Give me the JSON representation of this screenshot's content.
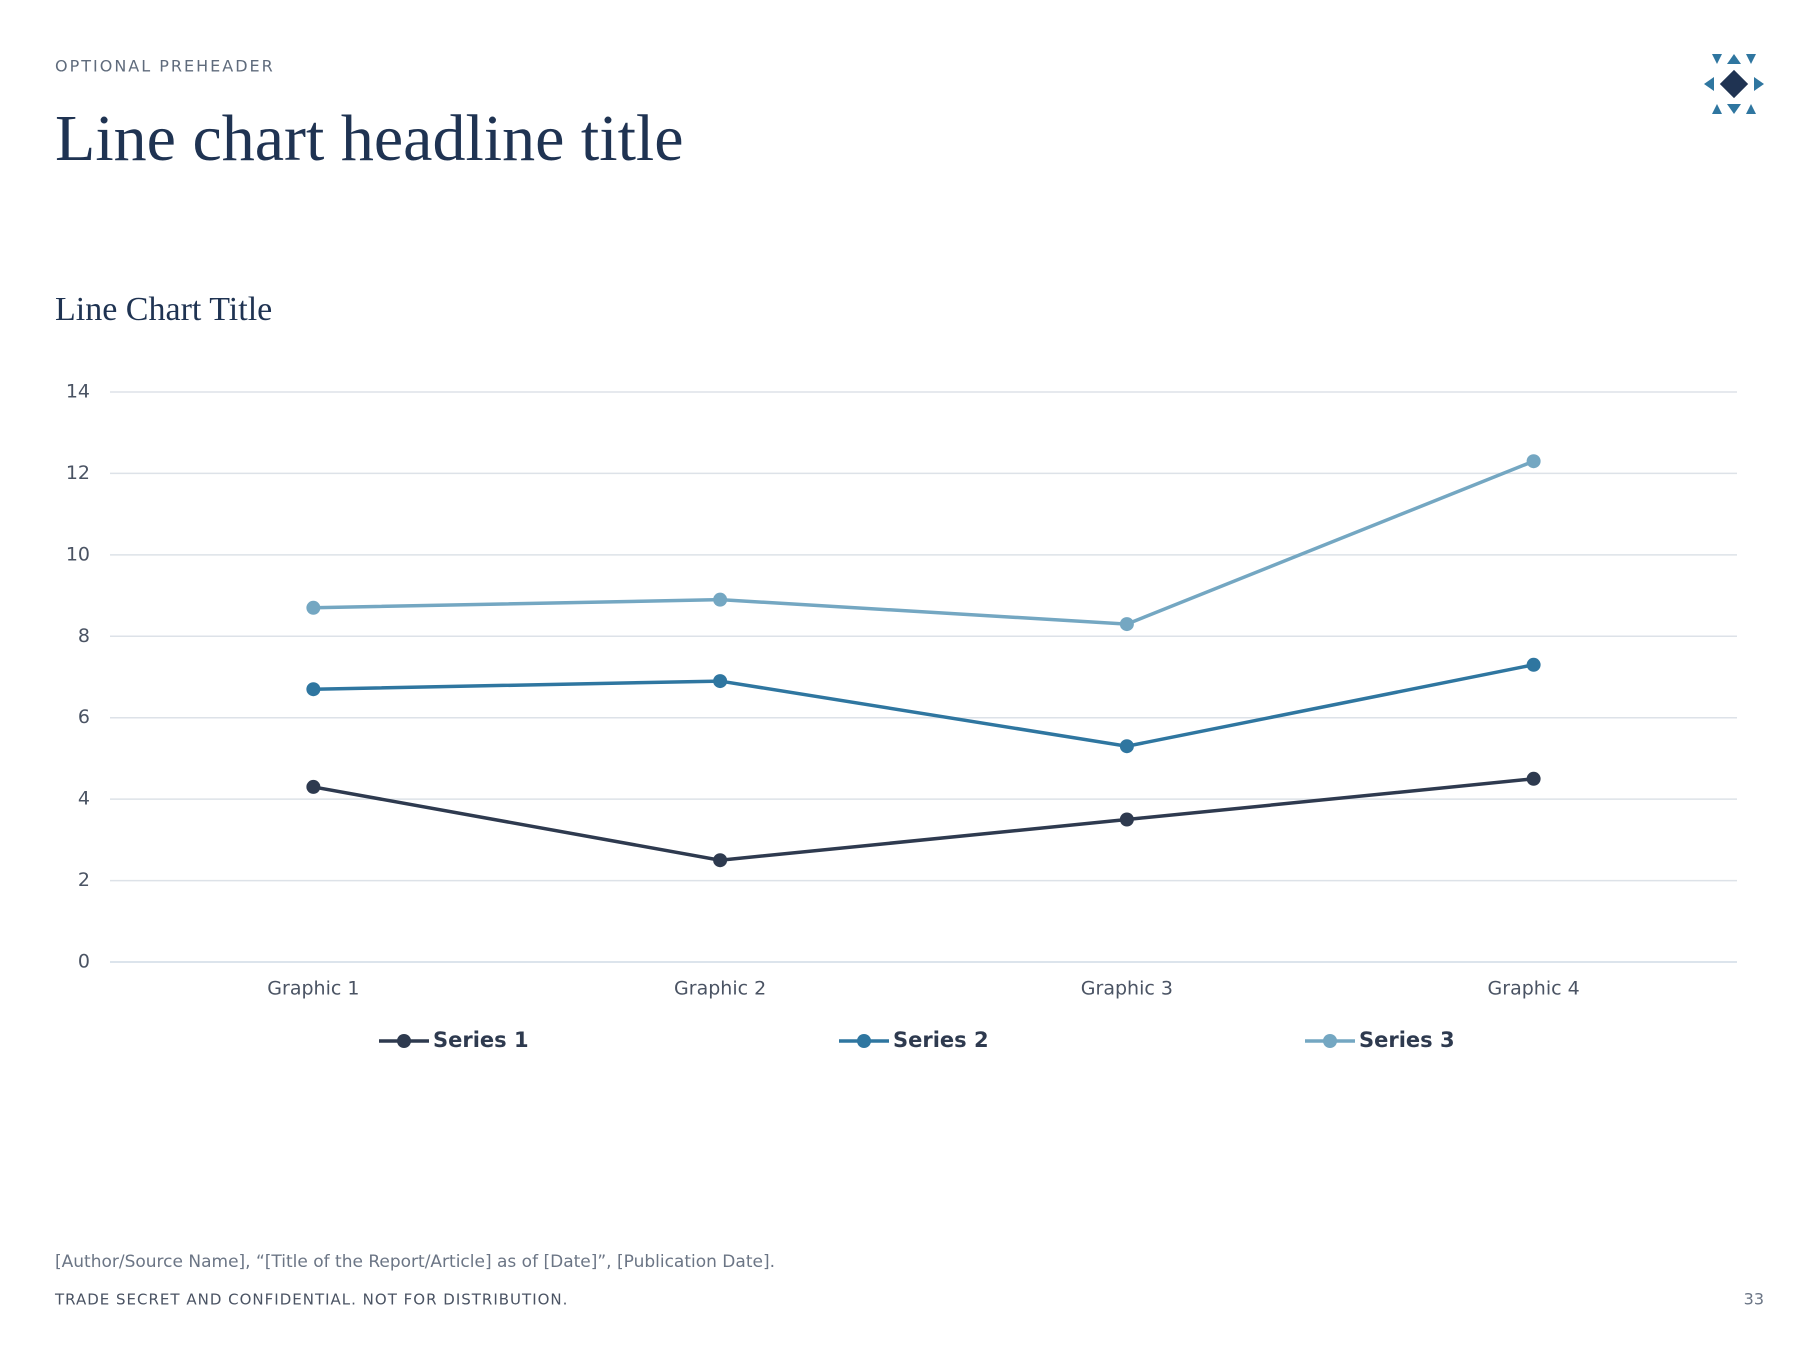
{
  "preheader": "OPTIONAL PREHEADER",
  "headline": "Line chart headline title",
  "chart_data": {
    "type": "line",
    "title": "Line Chart Title",
    "categories": [
      "Graphic 1",
      "Graphic 2",
      "Graphic 3",
      "Graphic 4"
    ],
    "series": [
      {
        "name": "Series 1",
        "color": "#2e3a4f",
        "values": [
          4.3,
          2.5,
          3.5,
          4.5
        ]
      },
      {
        "name": "Series 2",
        "color": "#2f76a0",
        "values": [
          6.7,
          6.9,
          5.3,
          7.3
        ]
      },
      {
        "name": "Series 3",
        "color": "#74a7c2",
        "values": [
          8.7,
          8.9,
          8.3,
          12.3
        ]
      }
    ],
    "ylim": [
      0,
      14
    ],
    "yticks": [
      0,
      2,
      4,
      6,
      8,
      10,
      12,
      14
    ],
    "grid": true,
    "legend": "bottom"
  },
  "source": "[Author/Source Name], “[Title of the Report/Article] as of [Date]”, [Publication Date].",
  "footer": "TRADE SECRET AND CONFIDENTIAL. NOT FOR DISTRIBUTION.",
  "page_number": "33"
}
